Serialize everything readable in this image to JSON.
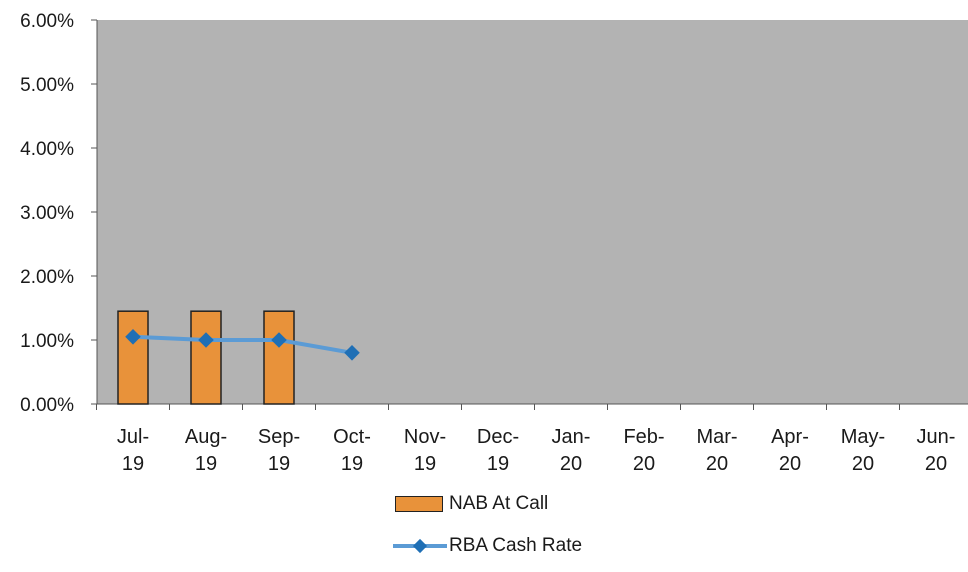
{
  "chart_data": {
    "type": "bar",
    "categories": [
      "Jul-19",
      "Aug-19",
      "Sep-19",
      "Oct-19",
      "Nov-19",
      "Dec-19",
      "Jan-20",
      "Feb-20",
      "Mar-20",
      "Apr-20",
      "May-20",
      "Jun-20"
    ],
    "category_label_lines": [
      [
        "Jul-",
        "19"
      ],
      [
        "Aug-",
        "19"
      ],
      [
        "Sep-",
        "19"
      ],
      [
        "Oct-",
        "19"
      ],
      [
        "Nov-",
        "19"
      ],
      [
        "Dec-",
        "19"
      ],
      [
        "Jan-",
        "20"
      ],
      [
        "Feb-",
        "20"
      ],
      [
        "Mar-",
        "20"
      ],
      [
        "Apr-",
        "20"
      ],
      [
        "May-",
        "20"
      ],
      [
        "Jun-",
        "20"
      ]
    ],
    "series": [
      {
        "name": "NAB At Call",
        "type": "bar",
        "values": [
          1.45,
          1.45,
          1.45,
          null,
          null,
          null,
          null,
          null,
          null,
          null,
          null,
          null
        ],
        "color": "#e8923a"
      },
      {
        "name": "RBA Cash Rate",
        "type": "line",
        "values": [
          1.05,
          1.0,
          1.0,
          0.8,
          null,
          null,
          null,
          null,
          null,
          null,
          null,
          null
        ],
        "color": "#5b9bd5",
        "marker_color": "#1f6fb5"
      }
    ],
    "yticks": [
      "0.00%",
      "1.00%",
      "2.00%",
      "3.00%",
      "4.00%",
      "5.00%",
      "6.00%"
    ],
    "ylim": [
      0,
      6
    ],
    "title": "",
    "xlabel": "",
    "ylabel": "",
    "legend_position": "bottom",
    "plot_background": "#b3b3b3"
  },
  "legend": {
    "items": [
      {
        "label": "NAB At Call"
      },
      {
        "label": "RBA Cash Rate"
      }
    ]
  }
}
